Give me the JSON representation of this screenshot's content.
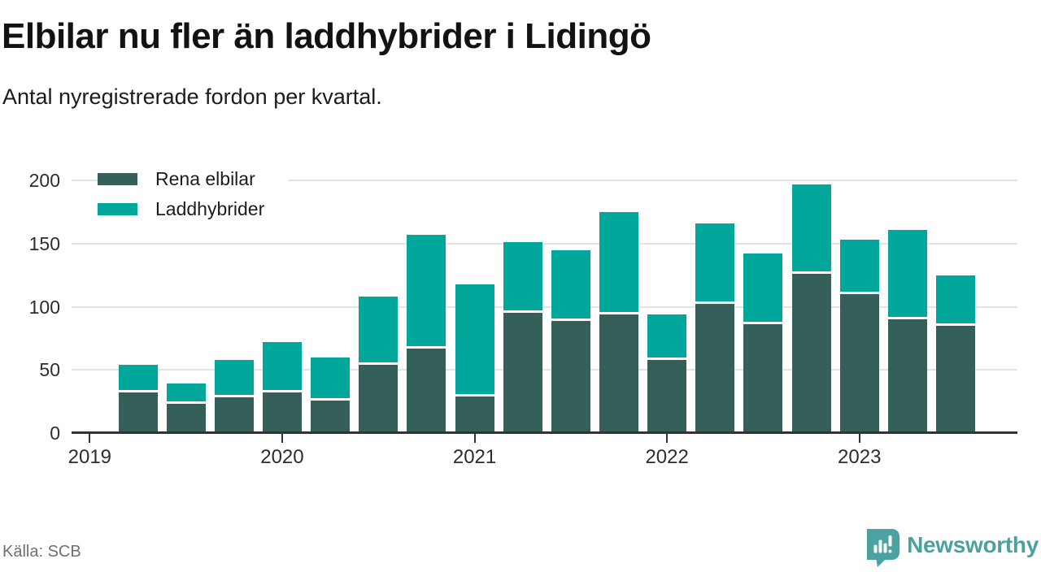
{
  "header": {
    "title": "Elbilar nu fler än laddhybrider i Lidingö",
    "subtitle": "Antal nyregistrerade fordon per kvartal."
  },
  "legend": [
    {
      "label": "Rena elbilar",
      "color": "#35605a"
    },
    {
      "label": "Laddhybrider",
      "color": "#00a79a"
    }
  ],
  "chart_data": {
    "type": "bar",
    "stacked": true,
    "title": "Elbilar nu fler än laddhybrider i Lidingö",
    "subtitle": "Antal nyregistrerade fordon per kvartal.",
    "categories": [
      "2019 Q2",
      "2019 Q3",
      "2019 Q4",
      "2020 Q1",
      "2020 Q2",
      "2020 Q3",
      "2020 Q4",
      "2021 Q1",
      "2021 Q2",
      "2021 Q3",
      "2021 Q4",
      "2022 Q1",
      "2022 Q2",
      "2022 Q3",
      "2022 Q4",
      "2023 Q1",
      "2023 Q2",
      "2023 Q3"
    ],
    "series": [
      {
        "name": "Rena elbilar",
        "color": "#35605a",
        "values": [
          32,
          23,
          28,
          32,
          26,
          54,
          67,
          29,
          95,
          89,
          94,
          58,
          102,
          86,
          126,
          110,
          90,
          85
        ]
      },
      {
        "name": "Laddhybrider",
        "color": "#00a79a",
        "values": [
          22,
          16,
          30,
          40,
          34,
          54,
          90,
          89,
          56,
          56,
          81,
          36,
          64,
          56,
          71,
          43,
          71,
          40
        ]
      }
    ],
    "ylim": [
      0,
      200
    ],
    "yticks": [
      0,
      50,
      100,
      150,
      200
    ],
    "year_ticks": [
      {
        "label": "2019",
        "slot": -1
      },
      {
        "label": "2020",
        "slot": 3
      },
      {
        "label": "2021",
        "slot": 7
      },
      {
        "label": "2022",
        "slot": 11
      },
      {
        "label": "2023",
        "slot": 15
      }
    ],
    "grid": "horizontal",
    "legend_position": "top-left"
  },
  "footer": {
    "source": "Källa: SCB",
    "brand": "Newsworthy"
  }
}
